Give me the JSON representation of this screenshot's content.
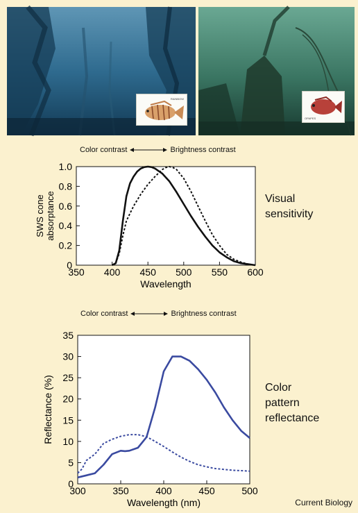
{
  "photos": {
    "left_fish_label": "RAINBOW",
    "right_fish_label": "OPAPES"
  },
  "top_panel": {
    "contrast_left": "Color contrast",
    "contrast_right": "Brightness contrast",
    "side_label_lines": [
      "Visual",
      "sensitivity"
    ]
  },
  "bottom_panel": {
    "contrast_left": "Color contrast",
    "contrast_right": "Brightness contrast",
    "side_label_lines": [
      "Color",
      "pattern",
      "reflectance"
    ]
  },
  "footer": {
    "credit": "Current Biology"
  },
  "colors": {
    "background": "#fbf1cf",
    "sensitivity_line": "#111111",
    "reflectance_line": "#3a4aa0"
  },
  "chart_data": [
    {
      "type": "line",
      "xlabel": "Wavelength",
      "ylabel_lines": [
        "SWS cone",
        "absorptance"
      ],
      "xlim": [
        350,
        600
      ],
      "ylim": [
        0,
        1.0
      ],
      "xticks": [
        350,
        400,
        450,
        500,
        550,
        600
      ],
      "yticks": [
        0,
        0.2,
        0.4,
        0.6,
        0.8,
        1.0
      ],
      "ytick_labels": [
        "0",
        "0.2",
        "0.4",
        "0.6",
        "0.8",
        "1.0"
      ],
      "grid": false,
      "series": [
        {
          "style": "solid",
          "x": [
            400,
            405,
            410,
            415,
            420,
            425,
            430,
            435,
            440,
            445,
            450,
            455,
            460,
            470,
            480,
            490,
            500,
            510,
            520,
            530,
            540,
            550,
            560,
            570,
            580,
            590,
            600
          ],
          "y": [
            0.0,
            0.02,
            0.15,
            0.45,
            0.7,
            0.83,
            0.9,
            0.95,
            0.98,
            0.995,
            1.0,
            0.995,
            0.98,
            0.93,
            0.85,
            0.74,
            0.62,
            0.5,
            0.39,
            0.29,
            0.2,
            0.13,
            0.08,
            0.04,
            0.02,
            0.01,
            0.0
          ]
        },
        {
          "style": "dashed",
          "x": [
            400,
            405,
            410,
            415,
            420,
            430,
            440,
            450,
            460,
            470,
            475,
            480,
            485,
            490,
            500,
            510,
            520,
            530,
            540,
            550,
            560,
            570,
            580,
            590,
            600
          ],
          "y": [
            0.0,
            0.02,
            0.12,
            0.3,
            0.45,
            0.6,
            0.72,
            0.82,
            0.9,
            0.97,
            0.99,
            1.0,
            0.99,
            0.97,
            0.88,
            0.75,
            0.6,
            0.45,
            0.31,
            0.2,
            0.11,
            0.06,
            0.03,
            0.01,
            0.0
          ]
        }
      ]
    },
    {
      "type": "line",
      "xlabel": "Wavelength (nm)",
      "ylabel": "Reflectance (%)",
      "xlim": [
        300,
        500
      ],
      "ylim": [
        0,
        35
      ],
      "xticks": [
        300,
        350,
        400,
        450,
        500
      ],
      "yticks": [
        0,
        5,
        10,
        15,
        20,
        25,
        30,
        35
      ],
      "grid": false,
      "series": [
        {
          "style": "solid",
          "x": [
            300,
            310,
            320,
            330,
            340,
            350,
            355,
            360,
            370,
            380,
            390,
            400,
            410,
            420,
            430,
            440,
            450,
            460,
            470,
            480,
            490,
            500
          ],
          "y": [
            1.5,
            2.0,
            2.5,
            4.5,
            7.0,
            7.8,
            7.7,
            7.8,
            8.5,
            11.0,
            18.0,
            26.5,
            30.0,
            30.0,
            29.0,
            27.0,
            24.5,
            21.5,
            18.0,
            15.0,
            12.5,
            10.8
          ]
        },
        {
          "style": "dashed",
          "x": [
            300,
            305,
            310,
            320,
            330,
            340,
            350,
            360,
            370,
            380,
            390,
            400,
            410,
            420,
            430,
            440,
            450,
            460,
            470,
            480,
            490,
            500
          ],
          "y": [
            2.5,
            3.5,
            5.5,
            7.0,
            9.5,
            10.5,
            11.2,
            11.6,
            11.6,
            11.1,
            10.0,
            8.8,
            7.5,
            6.3,
            5.3,
            4.5,
            4.0,
            3.6,
            3.4,
            3.2,
            3.1,
            3.0
          ]
        }
      ]
    }
  ]
}
